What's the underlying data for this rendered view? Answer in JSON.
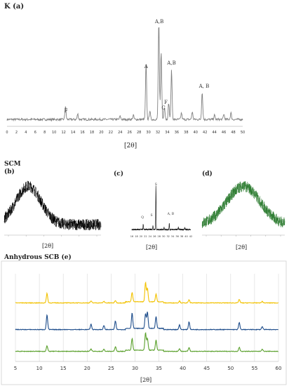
{
  "panels": {
    "a": {
      "title": "K (a)",
      "xlabel": "[2θ]",
      "ticks": [
        "0",
        "2",
        "4",
        "6",
        "8",
        "10",
        "12",
        "14",
        "16",
        "18",
        "20",
        "22",
        "24",
        "26",
        "28",
        "30",
        "32",
        "34",
        "36",
        "38",
        "40",
        "42",
        "44",
        "46",
        "48",
        "50"
      ],
      "annotations": [
        {
          "text": "F",
          "x": 12.5
        },
        {
          "text": "A",
          "x": 29.5
        },
        {
          "text": "A,B",
          "x": 32.3
        },
        {
          "text": "C",
          "x": 33.2
        },
        {
          "text": "F",
          "x": 34.0
        },
        {
          "text": "A,B",
          "x": 34.9
        },
        {
          "text": "A, B",
          "x": 41.8
        }
      ]
    },
    "scm_heading": "SCM",
    "b": {
      "title": "(b)",
      "xlabel": "[2θ]"
    },
    "c": {
      "title": "(c)",
      "xlabel": "[2θ]",
      "annotations": [
        {
          "text": "S",
          "x": 26.6
        },
        {
          "text": "Q",
          "x": 21.0
        },
        {
          "text": "A, B",
          "x": 32.5
        },
        {
          "text": "S",
          "x": 25.3
        }
      ],
      "ticks": [
        "16",
        "18",
        "20",
        "22",
        "24",
        "26",
        "28",
        "30",
        "32",
        "34",
        "36",
        "38",
        "40",
        "42"
      ]
    },
    "d": {
      "title": "(d)",
      "xlabel": "[2θ]"
    },
    "e": {
      "title": "Anhydrous SCB (e)",
      "xlabel": "[2θ]",
      "ticks": [
        "5",
        "10",
        "15",
        "20",
        "25",
        "30",
        "35",
        "40",
        "45",
        "50",
        "55",
        "60"
      ]
    }
  },
  "chart_data": [
    {
      "type": "line",
      "title": "K (a)",
      "xlabel": "[2θ]",
      "ylabel": "",
      "xlim": [
        0,
        50
      ],
      "peaks": [
        {
          "x": 12.4,
          "label": "F"
        },
        {
          "x": 29.5,
          "label": "A"
        },
        {
          "x": 32.2,
          "label": "A,B"
        },
        {
          "x": 32.7,
          "label": ""
        },
        {
          "x": 33.4,
          "label": "C"
        },
        {
          "x": 34.3,
          "label": "F"
        },
        {
          "x": 34.9,
          "label": "A,B"
        },
        {
          "x": 41.4,
          "label": "A, B"
        }
      ],
      "color": "#808080"
    },
    {
      "type": "line",
      "title": "(b)",
      "xlabel": "[2θ]",
      "shape": "amorphous hump",
      "color": "#000000"
    },
    {
      "type": "line",
      "title": "(c)",
      "xlabel": "[2θ]",
      "xlim": [
        16,
        42
      ],
      "color": "#000000"
    },
    {
      "type": "line",
      "title": "(d)",
      "xlabel": "[2θ]",
      "shape": "amorphous hump",
      "color": "#2e7d32"
    },
    {
      "type": "line",
      "title": "Anhydrous SCB (e)",
      "xlabel": "[2θ]",
      "xlim": [
        5,
        60
      ],
      "series": [
        {
          "color": "#f2c200"
        },
        {
          "color": "#1f4e8c"
        },
        {
          "color": "#5aa02c"
        }
      ],
      "peaks": [
        11.6,
        20.8,
        23.5,
        25.9,
        29.4,
        32.2,
        32.6,
        34.4,
        39.3,
        41.3,
        51.8,
        56.6
      ]
    }
  ]
}
